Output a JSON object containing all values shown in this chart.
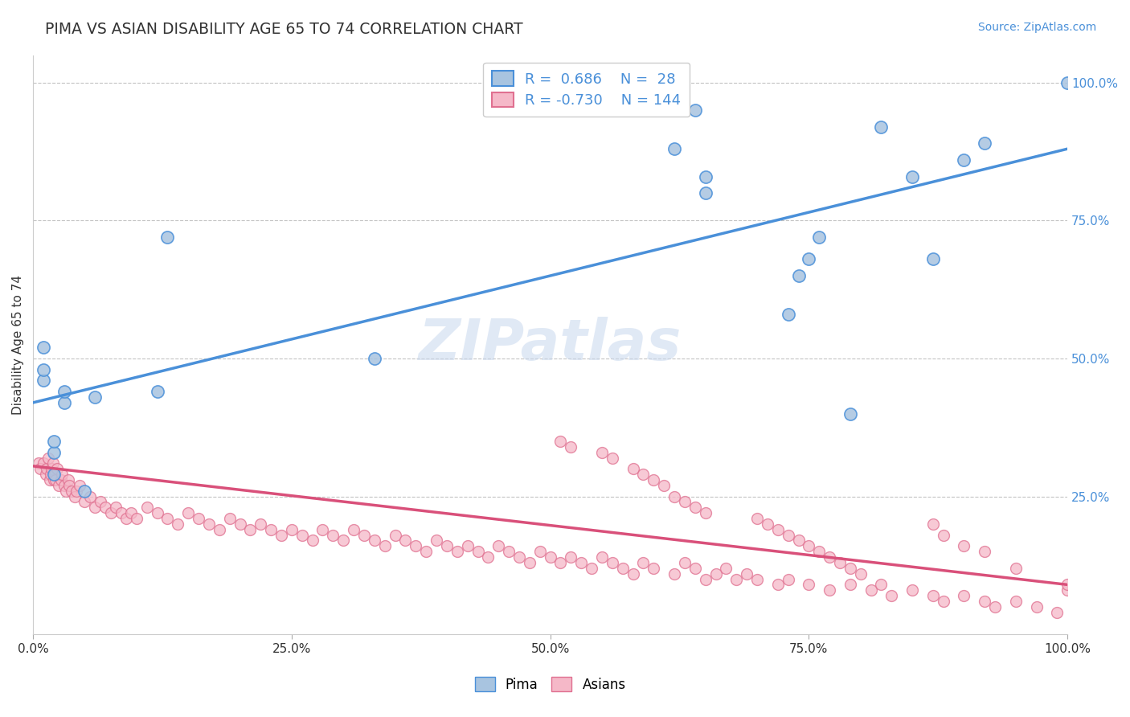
{
  "title": "PIMA VS ASIAN DISABILITY AGE 65 TO 74 CORRELATION CHART",
  "source_text": "Source: ZipAtlas.com",
  "ylabel": "Disability Age 65 to 74",
  "xlim": [
    0.0,
    1.0
  ],
  "ylim": [
    0.0,
    1.05
  ],
  "xticks": [
    0.0,
    0.25,
    0.5,
    0.75,
    1.0
  ],
  "xticklabels": [
    "0.0%",
    "25.0%",
    "50.0%",
    "75.0%",
    "100.0%"
  ],
  "ytick_positions": [
    0.25,
    0.5,
    0.75,
    1.0
  ],
  "ytick_labels": [
    "25.0%",
    "50.0%",
    "75.0%",
    "100.0%"
  ],
  "pima_color": "#a8c4e0",
  "pima_edge_color": "#4a90d9",
  "asians_color": "#f5b8c8",
  "asians_edge_color": "#e07090",
  "pima_line_color": "#4a90d9",
  "asians_line_color": "#d9507a",
  "legend_color": "#4a90d9",
  "watermark": "ZIPatlas",
  "background_color": "#ffffff",
  "pima_scatter_x": [
    0.01,
    0.01,
    0.01,
    0.02,
    0.02,
    0.02,
    0.03,
    0.03,
    0.05,
    0.06,
    0.12,
    0.13,
    0.33,
    0.62,
    0.64,
    0.65,
    0.65,
    0.73,
    0.74,
    0.75,
    0.76,
    0.79,
    0.82,
    0.85,
    0.87,
    0.9,
    0.92,
    1.0
  ],
  "pima_scatter_y": [
    0.46,
    0.48,
    0.52,
    0.29,
    0.33,
    0.35,
    0.42,
    0.44,
    0.26,
    0.43,
    0.44,
    0.72,
    0.5,
    0.88,
    0.95,
    0.8,
    0.83,
    0.58,
    0.65,
    0.68,
    0.72,
    0.4,
    0.92,
    0.83,
    0.68,
    0.86,
    0.89,
    1.0
  ],
  "asians_scatter_x": [
    0.005,
    0.007,
    0.01,
    0.012,
    0.013,
    0.015,
    0.016,
    0.017,
    0.018,
    0.019,
    0.02,
    0.021,
    0.022,
    0.023,
    0.025,
    0.027,
    0.028,
    0.03,
    0.032,
    0.034,
    0.035,
    0.037,
    0.04,
    0.042,
    0.045,
    0.05,
    0.055,
    0.06,
    0.065,
    0.07,
    0.075,
    0.08,
    0.085,
    0.09,
    0.095,
    0.1,
    0.11,
    0.12,
    0.13,
    0.14,
    0.15,
    0.16,
    0.17,
    0.18,
    0.19,
    0.2,
    0.21,
    0.22,
    0.23,
    0.24,
    0.25,
    0.26,
    0.27,
    0.28,
    0.29,
    0.3,
    0.31,
    0.32,
    0.33,
    0.34,
    0.35,
    0.36,
    0.37,
    0.38,
    0.39,
    0.4,
    0.41,
    0.42,
    0.43,
    0.44,
    0.45,
    0.46,
    0.47,
    0.48,
    0.49,
    0.5,
    0.51,
    0.52,
    0.53,
    0.54,
    0.55,
    0.56,
    0.57,
    0.58,
    0.59,
    0.6,
    0.62,
    0.63,
    0.64,
    0.65,
    0.66,
    0.67,
    0.68,
    0.69,
    0.7,
    0.72,
    0.73,
    0.75,
    0.77,
    0.79,
    0.81,
    0.83,
    0.85,
    0.87,
    0.88,
    0.9,
    0.92,
    0.93,
    0.95,
    0.97,
    0.99,
    1.0,
    0.51,
    0.55,
    0.58,
    0.6,
    0.62,
    0.64,
    0.65,
    0.7,
    0.72,
    0.74,
    0.76,
    0.78,
    0.8,
    0.82,
    0.87,
    0.9,
    0.95,
    1.0,
    0.52,
    0.56,
    0.59,
    0.61,
    0.63,
    0.71,
    0.73,
    0.75,
    0.77,
    0.79,
    0.88,
    0.92
  ],
  "asians_scatter_y": [
    0.31,
    0.3,
    0.31,
    0.29,
    0.3,
    0.32,
    0.28,
    0.29,
    0.3,
    0.31,
    0.28,
    0.29,
    0.28,
    0.3,
    0.27,
    0.28,
    0.29,
    0.27,
    0.26,
    0.28,
    0.27,
    0.26,
    0.25,
    0.26,
    0.27,
    0.24,
    0.25,
    0.23,
    0.24,
    0.23,
    0.22,
    0.23,
    0.22,
    0.21,
    0.22,
    0.21,
    0.23,
    0.22,
    0.21,
    0.2,
    0.22,
    0.21,
    0.2,
    0.19,
    0.21,
    0.2,
    0.19,
    0.2,
    0.19,
    0.18,
    0.19,
    0.18,
    0.17,
    0.19,
    0.18,
    0.17,
    0.19,
    0.18,
    0.17,
    0.16,
    0.18,
    0.17,
    0.16,
    0.15,
    0.17,
    0.16,
    0.15,
    0.16,
    0.15,
    0.14,
    0.16,
    0.15,
    0.14,
    0.13,
    0.15,
    0.14,
    0.13,
    0.14,
    0.13,
    0.12,
    0.14,
    0.13,
    0.12,
    0.11,
    0.13,
    0.12,
    0.11,
    0.13,
    0.12,
    0.1,
    0.11,
    0.12,
    0.1,
    0.11,
    0.1,
    0.09,
    0.1,
    0.09,
    0.08,
    0.09,
    0.08,
    0.07,
    0.08,
    0.07,
    0.06,
    0.07,
    0.06,
    0.05,
    0.06,
    0.05,
    0.04,
    0.08,
    0.35,
    0.33,
    0.3,
    0.28,
    0.25,
    0.23,
    0.22,
    0.21,
    0.19,
    0.17,
    0.15,
    0.13,
    0.11,
    0.09,
    0.2,
    0.16,
    0.12,
    0.09,
    0.34,
    0.32,
    0.29,
    0.27,
    0.24,
    0.2,
    0.18,
    0.16,
    0.14,
    0.12,
    0.18,
    0.15
  ],
  "pima_trend_x": [
    0.0,
    1.0
  ],
  "pima_trend_y": [
    0.42,
    0.88
  ],
  "asians_trend_x": [
    0.0,
    1.0
  ],
  "asians_trend_y": [
    0.305,
    0.09
  ]
}
